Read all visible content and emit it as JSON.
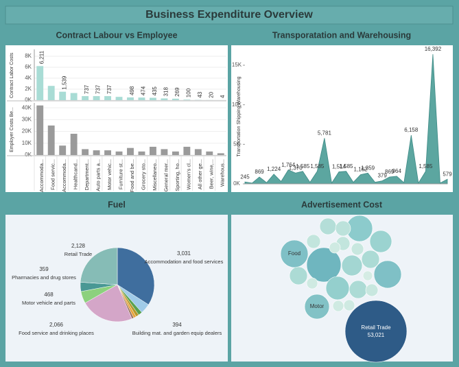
{
  "title": "Business Expenditure Overview",
  "chart_data": [
    {
      "type": "bar",
      "title": "Contract Labour vs Employee",
      "categories": [
        "Accommoda...",
        "Food servic...",
        "Accommoda...",
        "Healthcand...",
        "Department...",
        "Auto parts a...",
        "Motor vehic...",
        "Furniture st...",
        "Food and be...",
        "Grocery sto...",
        "Miscellaneo...",
        "General mer...",
        "Sporting, ho...",
        "Women's cl...",
        "All other ge...",
        "Beer, wine,...",
        "Warehous..."
      ],
      "series": [
        {
          "name": "Contract Labor Costs",
          "color": "#a9dcd5",
          "values": [
            6211,
            2600,
            1539,
            1300,
            737,
            737,
            737,
            600,
            498,
            474,
            435,
            318,
            269,
            100,
            43,
            20,
            4
          ],
          "value_labels": [
            "6,211",
            null,
            "1,539",
            null,
            "737",
            "737",
            "737",
            null,
            "498",
            "474",
            "435",
            "318",
            "269",
            "100",
            "43",
            "20",
            "4"
          ],
          "ylim": [
            0,
            9000
          ],
          "yticks": [
            {
              "value": 0,
              "label": "0K"
            },
            {
              "value": 2000,
              "label": "2K"
            },
            {
              "value": 4000,
              "label": "4K"
            },
            {
              "value": 6000,
              "label": "6K"
            },
            {
              "value": 8000,
              "label": "8K"
            }
          ]
        },
        {
          "name": "Employer Costs Be...",
          "color": "#9a9a9a",
          "values": [
            42000,
            25000,
            8000,
            18000,
            5000,
            4000,
            4000,
            3000,
            6000,
            3000,
            7000,
            5000,
            3000,
            7000,
            5000,
            3000,
            1500
          ],
          "ylim": [
            0,
            43000
          ],
          "yticks": [
            {
              "value": 0,
              "label": "0K"
            },
            {
              "value": 10000,
              "label": "10K"
            },
            {
              "value": 20000,
              "label": "20K"
            },
            {
              "value": 30000,
              "label": "30K"
            },
            {
              "value": 40000,
              "label": "40K"
            }
          ]
        }
      ]
    },
    {
      "type": "area",
      "title": "Transporatation and Warehousing",
      "ylabel": "Transportation Shipping Warehousing",
      "color": "#4a9c96",
      "values": [
        245,
        100,
        869,
        150,
        1224,
        300,
        1764,
        1370,
        1585,
        200,
        1585,
        5781,
        100,
        1514,
        1585,
        200,
        1162,
        1359,
        200,
        379,
        869,
        964,
        150,
        6158,
        100,
        1585,
        16392,
        100,
        579
      ],
      "value_labels": [
        "245",
        null,
        "869",
        null,
        "1,224",
        null,
        "1,764",
        "1,370",
        "1,585",
        null,
        "1,585",
        "5,781",
        null,
        "1,514",
        "1,585",
        null,
        "1,162",
        "1,359",
        null,
        "379",
        "869",
        "964",
        null,
        "6,158",
        null,
        "1,585",
        "16,392",
        null,
        "579"
      ],
      "ylim": [
        0,
        17000
      ],
      "yticks": [
        {
          "value": 0,
          "label": "0K"
        },
        {
          "value": 5000,
          "label": "5K"
        },
        {
          "value": 10000,
          "label": "10K"
        },
        {
          "value": 15000,
          "label": "15K"
        }
      ]
    },
    {
      "type": "pie",
      "title": "Fuel",
      "categories": [
        "Accommodation and food services",
        "Building mat. and garden equip dealers",
        null,
        null,
        null,
        null,
        "Food service and drinking places",
        "Motor vehicle and parts",
        "Pharmacies and drug stores",
        "Retail Trade"
      ],
      "values": [
        3031,
        394,
        150,
        120,
        100,
        80,
        2066,
        468,
        359,
        2128
      ],
      "value_labels": [
        "3,031",
        "394",
        null,
        null,
        null,
        null,
        "2,066",
        "468",
        "359",
        "2,128"
      ],
      "colors": [
        "#3f6e9e",
        "#a0cbe8",
        "#59a14f",
        "#b6992d",
        "#e8a33a",
        "#9c755f",
        "#d4a6c8",
        "#8cd17d",
        "#499894",
        "#86bcb6"
      ]
    },
    {
      "type": "bubble",
      "title": "Advertisement Cost",
      "categories": [
        "Retail Trade",
        "Food",
        "Motor",
        null,
        null,
        null,
        null,
        null,
        null,
        null,
        null,
        null,
        null,
        null,
        null,
        null,
        null,
        null,
        null,
        null,
        null,
        null,
        null
      ],
      "values": [
        53021,
        10473,
        8483,
        16364,
        10473,
        9452,
        6703,
        7567,
        5891,
        4425,
        4425,
        4425,
        3770,
        3168,
        2618,
        2618,
        2121,
        2121,
        1676,
        1676,
        1676,
        1676,
        1283
      ],
      "value_labels": [
        "53,021",
        null,
        null,
        null,
        null,
        null,
        null,
        null,
        null,
        null,
        null,
        null,
        null,
        null,
        null,
        null,
        null,
        null,
        null,
        null,
        null,
        null,
        null
      ],
      "colors": [
        "#2e5b87",
        "#7fc0c6",
        "#82c2c6",
        "#6fb6bf",
        "#7fc0c6",
        "#8ccbcc",
        "#9bd3d0",
        "#94cfcd",
        "#a3d6d2",
        "#acdbd5",
        "#acdbd5",
        "#acdbd5",
        "#b4ded8",
        "#bce2db",
        "#c2e5dd",
        "#c2e5dd",
        "#c8e7df",
        "#c8e7df",
        "#cfeae2",
        "#cfeae2",
        "#cfeae2",
        "#cfeae2",
        "#d5ece4"
      ]
    }
  ]
}
